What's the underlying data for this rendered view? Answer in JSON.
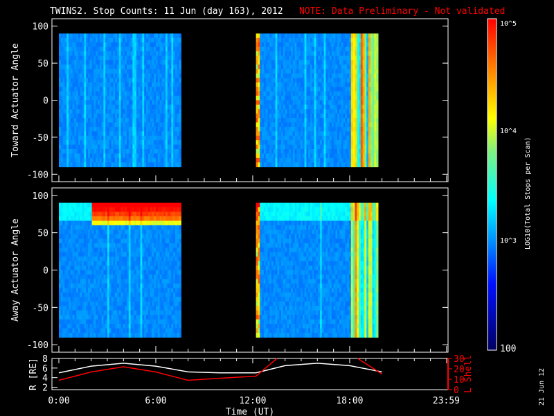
{
  "title": "TWINS2. Stop Counts: 11 Jun (day 163), 2012",
  "note": "NOTE: Data Preliminary - Not validated",
  "colors": {
    "title": "#ffffff",
    "note": "#ff0000",
    "r_line": "#ffffff",
    "l_line": "#ff0000",
    "background": "#000000"
  },
  "side_date": "21 Jun 12",
  "chart_data": [
    {
      "type": "heatmap",
      "ylabel": "Toward Actuator Angle",
      "ylim": [
        -110,
        110
      ],
      "yticks": [
        "100",
        "50",
        "0",
        "-50",
        "-100"
      ],
      "xlim_hours": [
        0,
        24
      ],
      "data_intervals_hours": [
        [
          0,
          7.55
        ],
        [
          12.2,
          19.7
        ]
      ],
      "dominant_level_log10": 2.7
    },
    {
      "type": "heatmap",
      "ylabel": "Away Actuator Angle",
      "ylim": [
        -110,
        110
      ],
      "yticks": [
        "100",
        "50",
        "0",
        "-50",
        "-100"
      ],
      "xlim_hours": [
        0,
        24
      ],
      "data_intervals_hours": [
        [
          0,
          7.55
        ],
        [
          12.2,
          19.7
        ]
      ],
      "dominant_level_log10": 2.7
    },
    {
      "type": "line",
      "xlabel": "Time (UT)",
      "xticks": [
        "0:00",
        "6:00",
        "12:00",
        "18:00",
        "23:59"
      ],
      "ylabel": "R [RE]",
      "ylim": [
        1.5,
        8
      ],
      "yticks": [
        "8",
        "6",
        "4",
        "2"
      ],
      "y2label": "L Shell",
      "y2lim": [
        0,
        30
      ],
      "y2ticks": [
        "30",
        "20",
        "10",
        "0"
      ],
      "series": [
        {
          "name": "R [RE]",
          "x": [
            0,
            2,
            4,
            6,
            8,
            10,
            12.2,
            14,
            16,
            18,
            20
          ],
          "y": [
            5,
            6.4,
            7,
            6.4,
            5.2,
            5.0,
            5.0,
            6.5,
            7.0,
            6.5,
            5.2
          ]
        },
        {
          "name": "L Shell",
          "x": [
            0,
            2,
            4,
            6,
            8,
            10,
            12.2,
            13.5,
            18.5,
            20
          ],
          "y": [
            9,
            17,
            22,
            17,
            9,
            11,
            13,
            30,
            30,
            15
          ]
        }
      ]
    }
  ],
  "colorbar": {
    "label": "LOG10(Total Stops per Scan)",
    "ticks": [
      "10^5",
      "10^4",
      "10^3",
      "100"
    ],
    "range": [
      100,
      100000
    ]
  }
}
